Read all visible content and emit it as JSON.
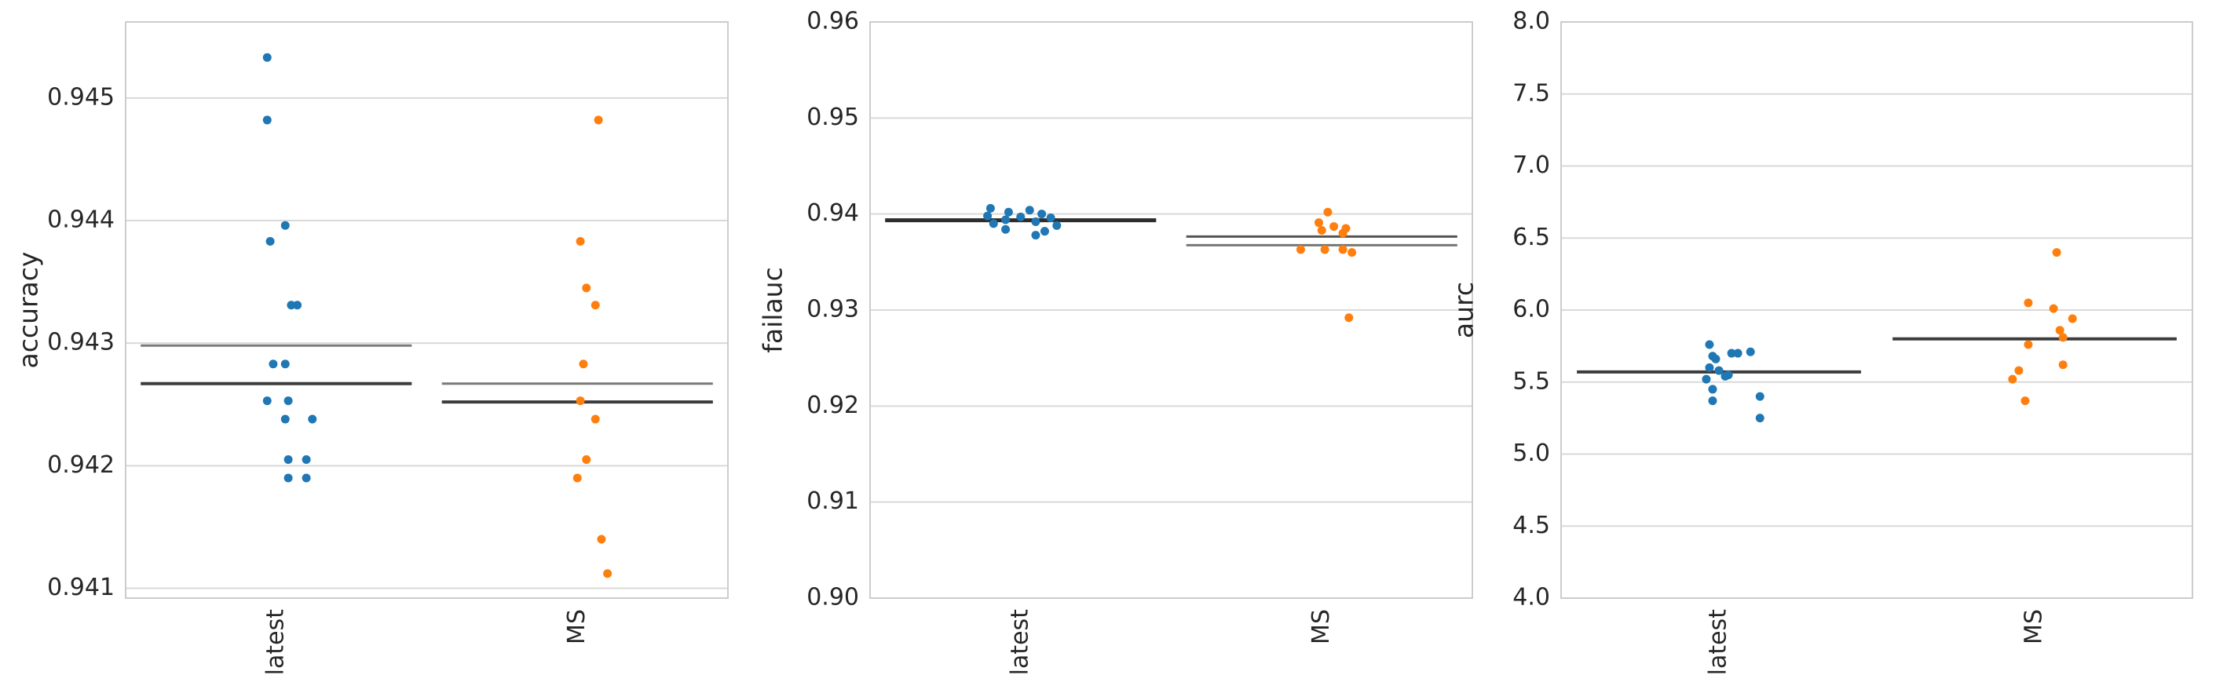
{
  "chart_data": [
    {
      "type": "scatter",
      "ylabel": "accuracy",
      "categories": [
        "latest",
        "MS"
      ],
      "ylim": [
        0.94092,
        0.94562
      ],
      "yticks": [
        0.941,
        0.942,
        0.943,
        0.944,
        0.945
      ],
      "ytick_labels": [
        "0.941",
        "0.942",
        "0.943",
        "0.944",
        "0.945"
      ],
      "grid": true,
      "series": [
        {
          "category": "latest",
          "color": "#1f77b4",
          "points": [
            [
              -0.03,
              0.94533
            ],
            [
              -0.03,
              0.94482
            ],
            [
              0.03,
              0.94396
            ],
            [
              -0.02,
              0.94383
            ],
            [
              0.05,
              0.94331
            ],
            [
              0.07,
              0.94331
            ],
            [
              -0.01,
              0.94283
            ],
            [
              0.03,
              0.94283
            ],
            [
              -0.03,
              0.94253
            ],
            [
              0.04,
              0.94253
            ],
            [
              0.03,
              0.94238
            ],
            [
              0.12,
              0.94238
            ],
            [
              0.04,
              0.94205
            ],
            [
              0.1,
              0.94205
            ],
            [
              0.04,
              0.9419
            ],
            [
              0.1,
              0.9419
            ]
          ]
        },
        {
          "category": "MS",
          "color": "#ff7f0e",
          "points": [
            [
              0.07,
              0.94482
            ],
            [
              0.01,
              0.94383
            ],
            [
              0.03,
              0.94345
            ],
            [
              0.06,
              0.94331
            ],
            [
              0.02,
              0.94283
            ],
            [
              0.01,
              0.94253
            ],
            [
              0.06,
              0.94238
            ],
            [
              0.03,
              0.94205
            ],
            [
              0.0,
              0.9419
            ],
            [
              0.08,
              0.9414
            ],
            [
              0.1,
              0.94112
            ]
          ]
        }
      ],
      "lines": [
        {
          "category": "latest",
          "y": 0.94298,
          "stroke": "#7a7a7a",
          "width": 3
        },
        {
          "category": "latest",
          "y": 0.94267,
          "stroke": "#3c3c3c",
          "width": 4
        },
        {
          "category": "MS",
          "y": 0.94267,
          "stroke": "#7a7a7a",
          "width": 3
        },
        {
          "category": "MS",
          "y": 0.94252,
          "stroke": "#3c3c3c",
          "width": 4
        }
      ]
    },
    {
      "type": "scatter",
      "ylabel": "failauc",
      "categories": [
        "latest",
        "MS"
      ],
      "ylim": [
        0.9,
        0.96
      ],
      "yticks": [
        0.9,
        0.91,
        0.92,
        0.93,
        0.94,
        0.95,
        0.96
      ],
      "ytick_labels": [
        "0.90",
        "0.91",
        "0.92",
        "0.93",
        "0.94",
        "0.95",
        "0.96"
      ],
      "grid": true,
      "series": [
        {
          "category": "latest",
          "color": "#1f77b4",
          "points": [
            [
              -0.1,
              0.9406
            ],
            [
              0.03,
              0.9404
            ],
            [
              -0.04,
              0.9402
            ],
            [
              0.07,
              0.94
            ],
            [
              -0.11,
              0.9398
            ],
            [
              0.0,
              0.9397
            ],
            [
              0.1,
              0.9396
            ],
            [
              -0.05,
              0.9394
            ],
            [
              0.05,
              0.9392
            ],
            [
              -0.09,
              0.939
            ],
            [
              0.12,
              0.9388
            ],
            [
              -0.05,
              0.9384
            ],
            [
              0.08,
              0.9382
            ],
            [
              0.05,
              0.9378
            ]
          ]
        },
        {
          "category": "MS",
          "color": "#ff7f0e",
          "points": [
            [
              0.02,
              0.9402
            ],
            [
              -0.01,
              0.9391
            ],
            [
              0.04,
              0.9387
            ],
            [
              0.08,
              0.9385
            ],
            [
              0.0,
              0.9383
            ],
            [
              0.07,
              0.938
            ],
            [
              -0.07,
              0.9363
            ],
            [
              0.01,
              0.9363
            ],
            [
              0.07,
              0.9363
            ],
            [
              0.1,
              0.936
            ],
            [
              0.09,
              0.9292
            ]
          ]
        }
      ],
      "lines": [
        {
          "category": "latest",
          "y": 0.93935,
          "stroke": "#2d2d2d",
          "width": 5
        },
        {
          "category": "MS",
          "y": 0.93765,
          "stroke": "#555555",
          "width": 3
        },
        {
          "category": "MS",
          "y": 0.93675,
          "stroke": "#777777",
          "width": 3
        }
      ]
    },
    {
      "type": "scatter",
      "ylabel": "aurc",
      "categories": [
        "latest",
        "MS"
      ],
      "ylim": [
        4.0,
        8.0
      ],
      "yticks": [
        4.0,
        4.5,
        5.0,
        5.5,
        6.0,
        6.5,
        7.0,
        7.5,
        8.0
      ],
      "ytick_labels": [
        "4.0",
        "4.5",
        "5.0",
        "5.5",
        "6.0",
        "6.5",
        "7.0",
        "7.5",
        "8.0"
      ],
      "grid": true,
      "series": [
        {
          "category": "latest",
          "color": "#1f77b4",
          "points": [
            [
              -0.03,
              5.76
            ],
            [
              0.1,
              5.71
            ],
            [
              0.04,
              5.7
            ],
            [
              0.06,
              5.7
            ],
            [
              -0.02,
              5.68
            ],
            [
              -0.01,
              5.66
            ],
            [
              -0.03,
              5.6
            ],
            [
              0.0,
              5.58
            ],
            [
              0.03,
              5.55
            ],
            [
              0.02,
              5.54
            ],
            [
              -0.04,
              5.52
            ],
            [
              -0.02,
              5.45
            ],
            [
              0.13,
              5.4
            ],
            [
              -0.02,
              5.37
            ],
            [
              0.13,
              5.25
            ]
          ]
        },
        {
          "category": "MS",
          "color": "#ff7f0e",
          "points": [
            [
              0.07,
              6.4
            ],
            [
              -0.02,
              6.05
            ],
            [
              0.06,
              6.01
            ],
            [
              0.12,
              5.94
            ],
            [
              0.08,
              5.86
            ],
            [
              0.09,
              5.81
            ],
            [
              -0.02,
              5.76
            ],
            [
              0.09,
              5.62
            ],
            [
              -0.05,
              5.58
            ],
            [
              -0.07,
              5.52
            ],
            [
              -0.03,
              5.37
            ]
          ]
        }
      ],
      "lines": [
        {
          "category": "latest",
          "y": 5.57,
          "stroke": "#3c3c3c",
          "width": 4
        },
        {
          "category": "MS",
          "y": 5.8,
          "stroke": "#3c3c3c",
          "width": 4
        }
      ]
    }
  ]
}
